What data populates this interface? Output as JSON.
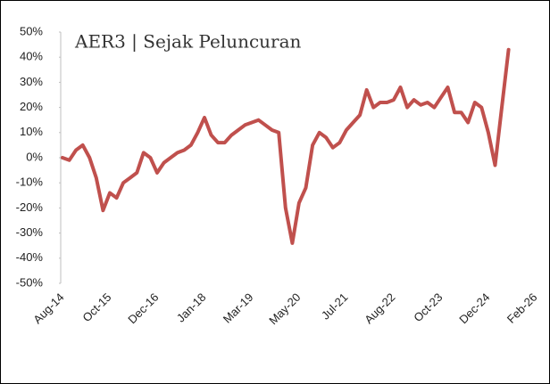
{
  "chart_data": {
    "type": "line",
    "title": "AER3 | Sejak Peluncuran",
    "categories": [
      "Aug-14",
      null,
      null,
      null,
      null,
      null,
      null,
      "Oct-15",
      null,
      null,
      null,
      null,
      null,
      null,
      "Dec-16",
      null,
      null,
      null,
      null,
      null,
      null,
      "Jan-18",
      null,
      null,
      null,
      null,
      null,
      null,
      "Mar-19",
      null,
      null,
      null,
      null,
      null,
      null,
      "May-20",
      null,
      null,
      null,
      null,
      null,
      null,
      "Jul-21",
      null,
      null,
      null,
      null,
      null,
      null,
      "Aug-22",
      null,
      null,
      null,
      null,
      null,
      null,
      "Oct-23",
      null,
      null,
      null,
      null,
      null,
      null,
      "Dec-24",
      null,
      null,
      null,
      null,
      null,
      null,
      "Feb-26"
    ],
    "series": [
      {
        "color": "#c0504d",
        "values": [
          0,
          -1,
          3,
          5,
          0,
          -8,
          -21,
          -14,
          -16,
          -10,
          -8,
          -6,
          2,
          0,
          -6,
          -2,
          0,
          2,
          3,
          5,
          10,
          16,
          9,
          6,
          6,
          9,
          11,
          13,
          14,
          15,
          13,
          11,
          10,
          -20,
          -34,
          -18,
          -12,
          5,
          10,
          8,
          4,
          6,
          11,
          14,
          17,
          27,
          20,
          22,
          22,
          23,
          28,
          20,
          23,
          21,
          22,
          20,
          24,
          28,
          18,
          18,
          14,
          22,
          20,
          10,
          -3,
          20,
          43,
          null,
          null,
          null,
          null
        ]
      }
    ],
    "ylim": [
      -50,
      50
    ],
    "yticks": [
      {
        "value": -50,
        "label": "-50%"
      },
      {
        "value": -40,
        "label": "-40%"
      },
      {
        "value": -30,
        "label": "-30%"
      },
      {
        "value": -20,
        "label": "-20%"
      },
      {
        "value": -10,
        "label": "-10%"
      },
      {
        "value": 0,
        "label": "0%"
      },
      {
        "value": 10,
        "label": "10%"
      },
      {
        "value": 20,
        "label": "20%"
      },
      {
        "value": 30,
        "label": "30%"
      },
      {
        "value": 40,
        "label": "40%"
      },
      {
        "value": 50,
        "label": "50%"
      }
    ],
    "grid": false
  }
}
